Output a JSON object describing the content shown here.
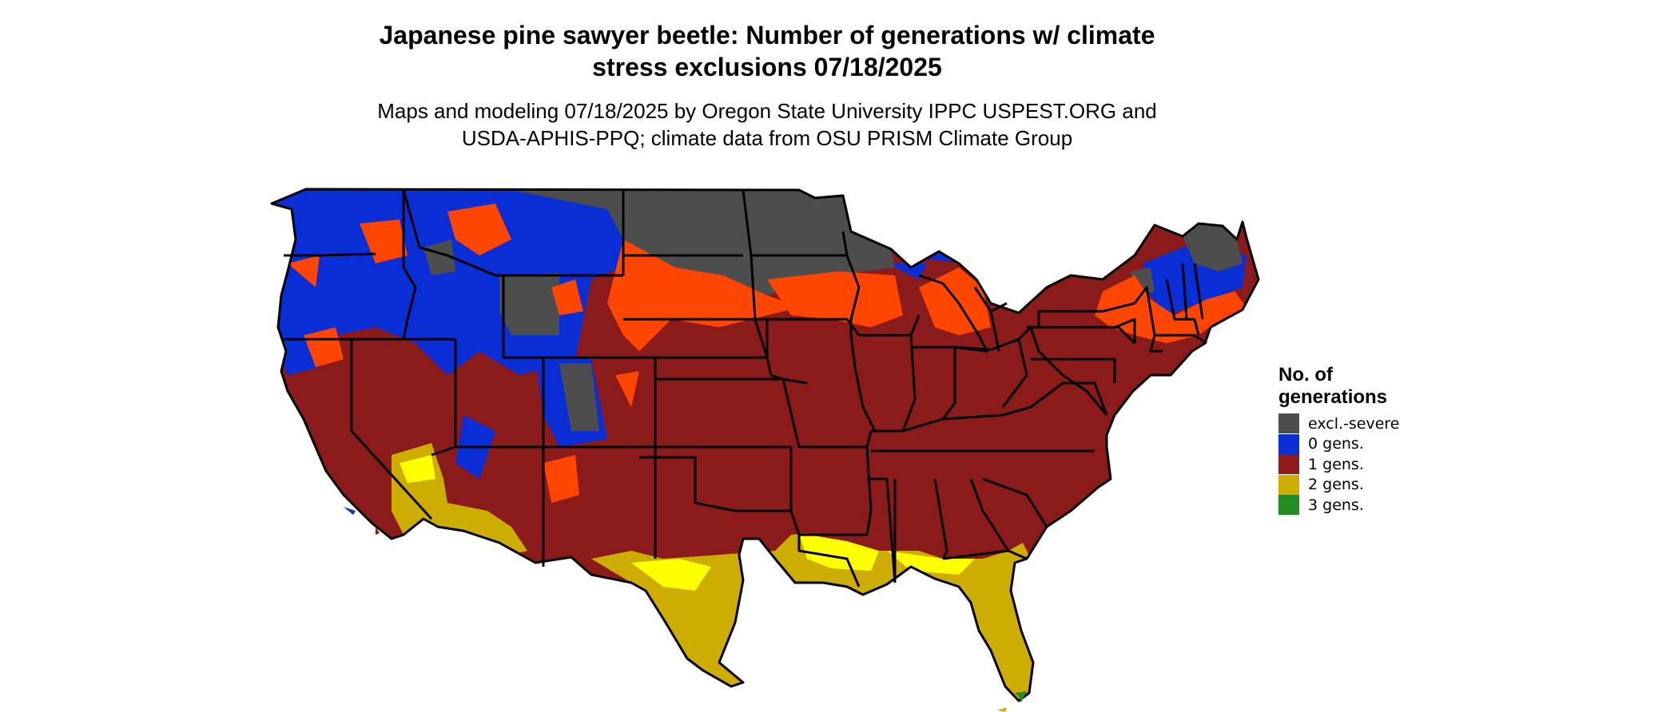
{
  "title": {
    "line1": "Japanese pine sawyer beetle: Number of generations w/ climate",
    "line2": "stress exclusions 07/18/2025"
  },
  "subtitle": {
    "line1": "Maps and modeling 07/18/2025 by Oregon State University IPPC USPEST.ORG and",
    "line2": "USDA-APHIS-PPQ; climate data from OSU PRISM Climate Group"
  },
  "legend": {
    "title_line1": "No. of",
    "title_line2": "generations",
    "items": [
      {
        "label": "excl.-severe",
        "color": "#4d4d4d"
      },
      {
        "label": "0 gens.",
        "color": "#0a2ed6"
      },
      {
        "label": "1 gens.",
        "color": "#8b1a1a"
      },
      {
        "label": "2 gens.",
        "color": "#cdad00"
      },
      {
        "label": "3 gens.",
        "color": "#228b22"
      }
    ]
  },
  "map_colors": {
    "border": "#000000",
    "gen1_light": "#ff4500",
    "gen2_light": "#ffff00"
  }
}
